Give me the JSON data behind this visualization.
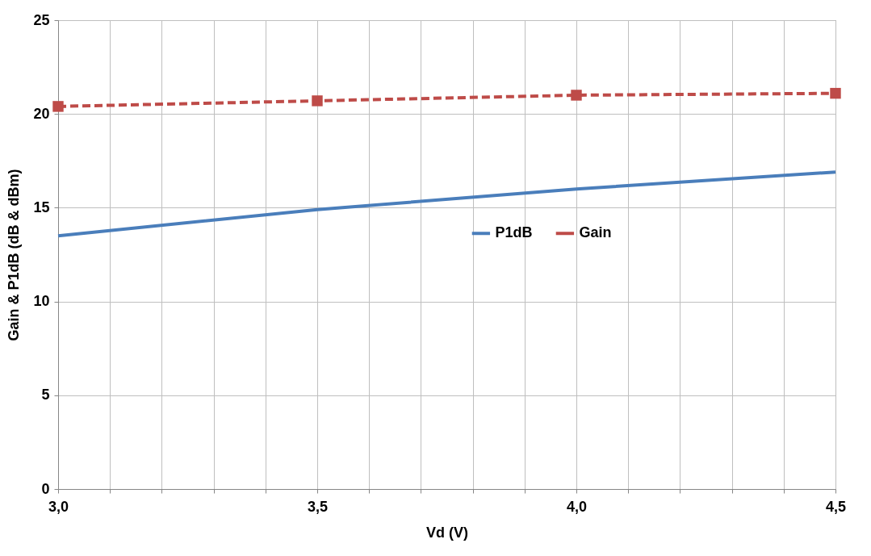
{
  "chart_data": {
    "type": "line",
    "xlabel": "Vd (V)",
    "ylabel": "Gain & P1dB (dB & dBm)",
    "x": [
      3.0,
      3.5,
      4.0,
      4.5
    ],
    "series": [
      {
        "name": "P1dB",
        "color": "#4a7ebb",
        "values": [
          13.5,
          14.9,
          16.0,
          16.9
        ],
        "marker": "none",
        "line_style": "solid"
      },
      {
        "name": "Gain",
        "color": "#be4b48",
        "values": [
          20.4,
          20.7,
          21.0,
          21.1
        ],
        "marker": "square",
        "line_style": "dashed"
      }
    ],
    "xlim": [
      3.0,
      4.5
    ],
    "xticks": [
      {
        "value": 3.0,
        "label": "3,0"
      },
      {
        "value": 3.1,
        "label": null
      },
      {
        "value": 3.2,
        "label": null
      },
      {
        "value": 3.3,
        "label": null
      },
      {
        "value": 3.4,
        "label": null
      },
      {
        "value": 3.5,
        "label": "3,5"
      },
      {
        "value": 3.6,
        "label": null
      },
      {
        "value": 3.7,
        "label": null
      },
      {
        "value": 3.8,
        "label": null
      },
      {
        "value": 3.9,
        "label": null
      },
      {
        "value": 4.0,
        "label": "4,0"
      },
      {
        "value": 4.1,
        "label": null
      },
      {
        "value": 4.2,
        "label": null
      },
      {
        "value": 4.3,
        "label": null
      },
      {
        "value": 4.4,
        "label": null
      },
      {
        "value": 4.5,
        "label": "4,5"
      }
    ],
    "ylim": [
      0,
      25
    ],
    "yticks": [
      0,
      5,
      10,
      15,
      20,
      25
    ],
    "grid": true,
    "legend": "center"
  }
}
